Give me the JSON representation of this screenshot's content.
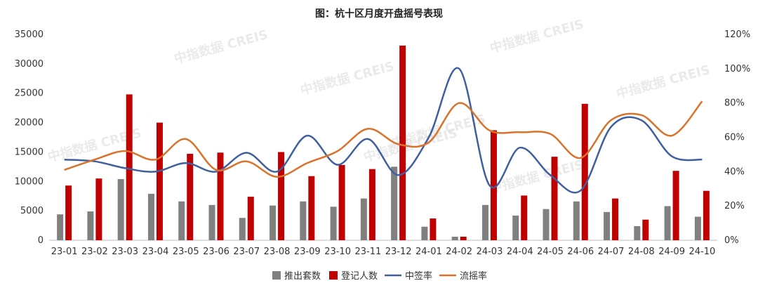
{
  "chart_data": {
    "type": "bar+line",
    "title": "图：杭十区月度开盘摇号表现",
    "watermark": "中指数据 CREIS",
    "categories": [
      "23-01",
      "23-02",
      "23-03",
      "23-04",
      "23-05",
      "23-06",
      "23-07",
      "23-08",
      "23-09",
      "23-10",
      "23-11",
      "23-12",
      "24-01",
      "24-02",
      "24-03",
      "24-04",
      "24-05",
      "24-06",
      "24-07",
      "24-08",
      "24-09",
      "24-10"
    ],
    "y_left": {
      "min": 0,
      "max": 35000,
      "ticks": [
        0,
        5000,
        10000,
        15000,
        20000,
        25000,
        30000,
        35000
      ],
      "tick_labels": [
        "0",
        "5000",
        "10000",
        "15000",
        "20000",
        "25000",
        "30000",
        "35000"
      ]
    },
    "y_right": {
      "min": 0,
      "max": 120,
      "ticks": [
        0,
        20,
        40,
        60,
        80,
        100,
        120
      ],
      "tick_labels": [
        "0%",
        "20%",
        "40%",
        "60%",
        "80%",
        "100%",
        "120%"
      ]
    },
    "series": [
      {
        "name": "推出套数",
        "kind": "bar",
        "axis": "left",
        "color": "#808080",
        "values": [
          4400,
          4900,
          10400,
          7900,
          6600,
          6000,
          3800,
          5900,
          6600,
          5700,
          7100,
          12500,
          2300,
          600,
          6000,
          4200,
          5300,
          6600,
          4800,
          2400,
          5800,
          4000
        ]
      },
      {
        "name": "登记人数",
        "kind": "bar",
        "axis": "left",
        "color": "#c00000",
        "values": [
          9300,
          10500,
          24800,
          20000,
          14700,
          14900,
          7400,
          15000,
          10900,
          12800,
          12100,
          33100,
          3700,
          600,
          18700,
          7600,
          14200,
          23200,
          7100,
          3500,
          11800,
          8400
        ]
      },
      {
        "name": "中签率",
        "kind": "line",
        "axis": "right",
        "color": "#3f5f9f",
        "values": [
          47,
          46,
          42,
          40,
          45,
          40,
          51,
          40,
          61,
          44,
          59,
          38,
          60,
          100,
          32,
          54,
          38,
          29,
          66,
          70,
          49,
          47
        ]
      },
      {
        "name": "流摇率",
        "kind": "line",
        "axis": "right",
        "color": "#d9722b",
        "values": [
          41,
          47,
          52,
          47,
          59,
          41,
          46,
          37,
          45,
          52,
          65,
          56,
          57,
          80,
          64,
          63,
          62,
          48,
          70,
          73,
          61,
          81
        ]
      }
    ],
    "legend_position": "bottom",
    "grid": false
  }
}
